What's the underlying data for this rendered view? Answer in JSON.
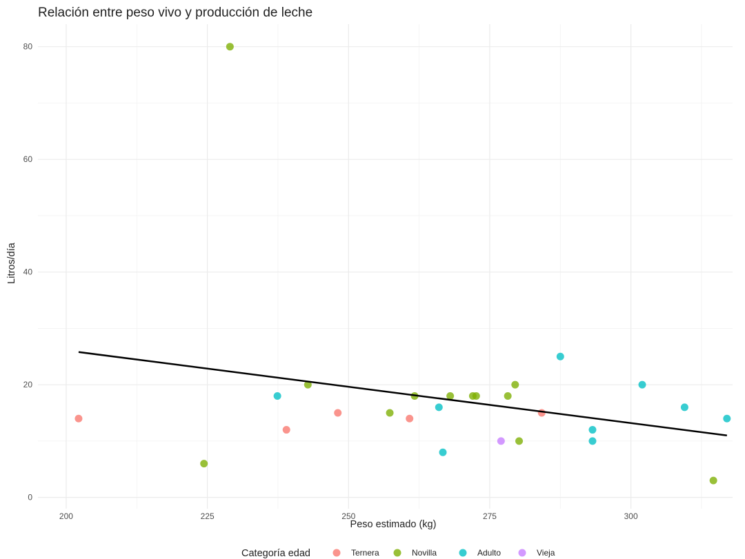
{
  "chart_data": {
    "type": "scatter",
    "title": "Relación entre peso vivo y producción de leche",
    "xlabel": "Peso estimado (kg)",
    "ylabel": "Litros/día",
    "xlim": [
      195,
      318
    ],
    "ylim": [
      -2,
      84
    ],
    "x_ticks": [
      200,
      225,
      250,
      275,
      300
    ],
    "y_ticks": [
      0,
      20,
      40,
      60,
      80
    ],
    "grid": true,
    "legend_position": "bottom",
    "legend_title": "Categoría edad",
    "series": [
      {
        "name": "Ternera",
        "color": "#F8766D",
        "points": [
          {
            "x": 202.2,
            "y": 14
          },
          {
            "x": 239.0,
            "y": 12
          },
          {
            "x": 248.1,
            "y": 15
          },
          {
            "x": 260.8,
            "y": 14
          },
          {
            "x": 284.2,
            "y": 15
          }
        ]
      },
      {
        "name": "Novilla",
        "color": "#7CAE00",
        "points": [
          {
            "x": 229.0,
            "y": 80
          },
          {
            "x": 224.4,
            "y": 6
          },
          {
            "x": 242.8,
            "y": 20
          },
          {
            "x": 257.3,
            "y": 15
          },
          {
            "x": 261.7,
            "y": 18
          },
          {
            "x": 268.0,
            "y": 18
          },
          {
            "x": 272.0,
            "y": 18
          },
          {
            "x": 272.6,
            "y": 18
          },
          {
            "x": 278.2,
            "y": 18
          },
          {
            "x": 279.5,
            "y": 20
          },
          {
            "x": 280.2,
            "y": 10
          },
          {
            "x": 314.6,
            "y": 3
          }
        ]
      },
      {
        "name": "Adulto",
        "color": "#00BFC4",
        "points": [
          {
            "x": 237.4,
            "y": 18
          },
          {
            "x": 266.0,
            "y": 16
          },
          {
            "x": 266.7,
            "y": 8
          },
          {
            "x": 287.5,
            "y": 25
          },
          {
            "x": 293.2,
            "y": 12
          },
          {
            "x": 293.2,
            "y": 10
          },
          {
            "x": 302.0,
            "y": 20
          },
          {
            "x": 309.5,
            "y": 16
          },
          {
            "x": 317.0,
            "y": 14
          }
        ]
      },
      {
        "name": "Vieja",
        "color": "#C77CFF",
        "points": [
          {
            "x": 277.0,
            "y": 10
          }
        ]
      }
    ],
    "trend_line": {
      "x": [
        202.2,
        317.0
      ],
      "y": [
        25.8,
        11.0
      ],
      "color": "#000000"
    }
  }
}
